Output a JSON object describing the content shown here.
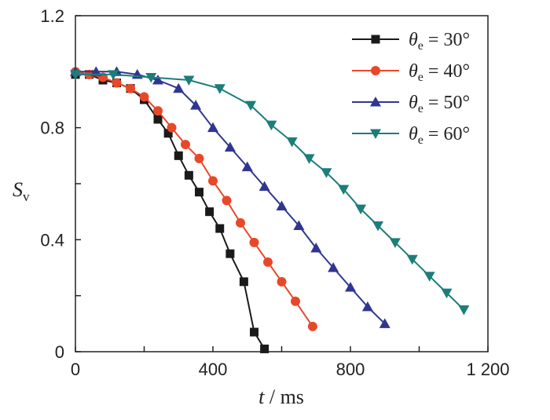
{
  "chart_data": {
    "type": "line",
    "x_label": {
      "var": "t",
      "sep": " / ",
      "unit": "ms"
    },
    "y_label": {
      "var": "S",
      "sub": "v"
    },
    "x_ticks": [
      {
        "value": 0,
        "label": "0"
      },
      {
        "value": 400,
        "label": "400"
      },
      {
        "value": 800,
        "label": "800"
      },
      {
        "value": 1200,
        "label": "1 200"
      }
    ],
    "y_ticks": [
      {
        "value": 0,
        "label": "0"
      },
      {
        "value": 0.4,
        "label": "0.4"
      },
      {
        "value": 0.8,
        "label": "0.8"
      },
      {
        "value": 1.2,
        "label": "1.2"
      }
    ],
    "xlim": [
      0,
      1200
    ],
    "ylim": [
      0,
      1.2
    ],
    "grid": false,
    "legend_position": "top-right",
    "series": [
      {
        "legend": {
          "sym": "θ",
          "sub": "e",
          "val": " = 30°"
        },
        "color": "#1a1a1a",
        "marker": "square",
        "x": [
          0,
          40,
          80,
          120,
          160,
          200,
          240,
          270,
          300,
          330,
          360,
          390,
          420,
          450,
          490,
          520,
          550
        ],
        "y": [
          0.99,
          0.99,
          0.97,
          0.96,
          0.94,
          0.9,
          0.83,
          0.78,
          0.7,
          0.63,
          0.57,
          0.5,
          0.44,
          0.35,
          0.25,
          0.07,
          0.01
        ]
      },
      {
        "legend": {
          "sym": "θ",
          "sub": "e",
          "val": " = 40°"
        },
        "color": "#e8482a",
        "marker": "circle",
        "x": [
          0,
          40,
          80,
          120,
          160,
          200,
          240,
          280,
          320,
          360,
          400,
          440,
          480,
          520,
          560,
          600,
          640,
          690
        ],
        "y": [
          1.0,
          0.99,
          0.98,
          0.96,
          0.94,
          0.91,
          0.86,
          0.8,
          0.74,
          0.69,
          0.61,
          0.54,
          0.46,
          0.39,
          0.32,
          0.25,
          0.18,
          0.09
        ]
      },
      {
        "legend": {
          "sym": "θ",
          "sub": "e",
          "val": " = 50°"
        },
        "color": "#2f3691",
        "marker": "triangle-up",
        "x": [
          0,
          60,
          120,
          180,
          240,
          300,
          350,
          400,
          450,
          500,
          550,
          600,
          650,
          700,
          750,
          800,
          850,
          900
        ],
        "y": [
          1.0,
          1.0,
          1.0,
          0.99,
          0.97,
          0.94,
          0.88,
          0.8,
          0.73,
          0.66,
          0.59,
          0.52,
          0.45,
          0.37,
          0.3,
          0.23,
          0.16,
          0.1
        ]
      },
      {
        "legend": {
          "sym": "θ",
          "sub": "e",
          "val": " = 60°"
        },
        "color": "#1d7d7a",
        "marker": "triangle-down",
        "x": [
          0,
          110,
          220,
          330,
          420,
          510,
          570,
          630,
          680,
          730,
          780,
          830,
          880,
          930,
          980,
          1030,
          1080,
          1130
        ],
        "y": [
          0.99,
          0.99,
          0.98,
          0.97,
          0.94,
          0.88,
          0.81,
          0.75,
          0.69,
          0.64,
          0.58,
          0.51,
          0.45,
          0.39,
          0.33,
          0.27,
          0.21,
          0.15
        ]
      }
    ]
  }
}
